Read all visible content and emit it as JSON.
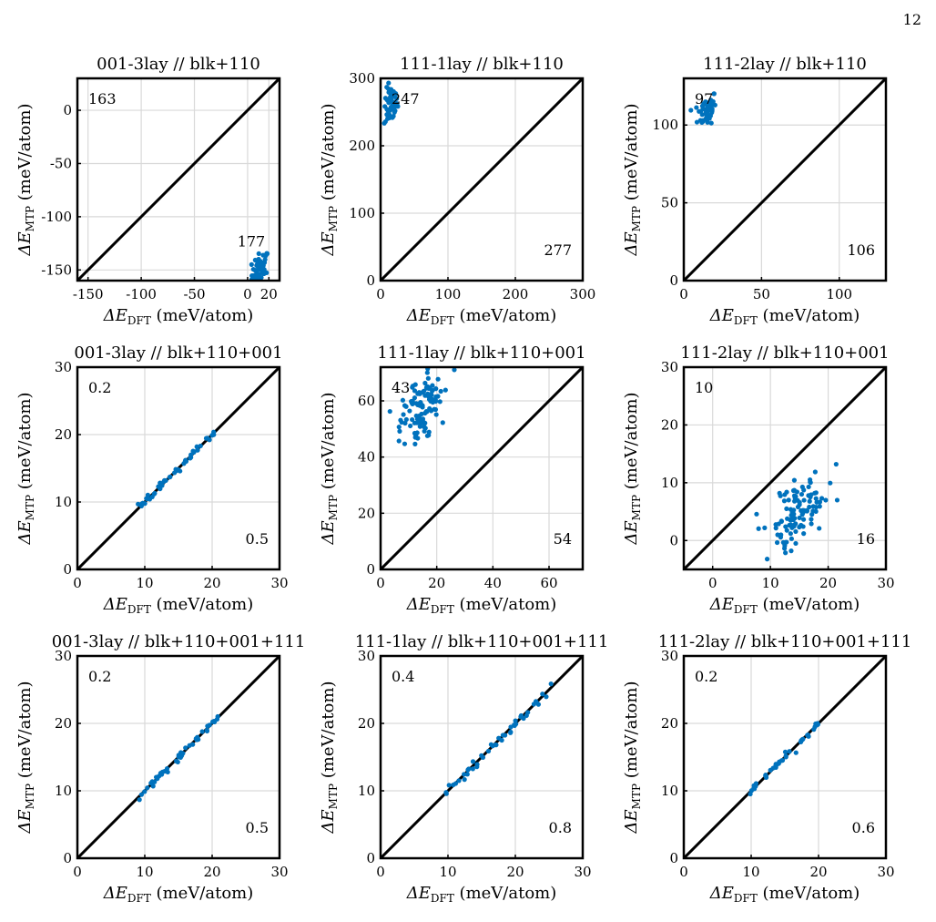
{
  "page": {
    "number": "12"
  },
  "axis_labels": {
    "x_symbol": "ΔE",
    "x_sub": "DFT",
    "x_unit": " (meV/atom)",
    "y_symbol": "ΔE",
    "y_sub": "MTP",
    "y_unit": " (meV/atom)"
  },
  "colors": {
    "marker": "#0072BD",
    "identity_line": "#000000",
    "grid": "#d9d9d9"
  },
  "chart_data": [
    {
      "type": "scatter",
      "title": "001-3lay // blk+110",
      "xlim": [
        -160,
        30
      ],
      "ylim": [
        -160,
        30
      ],
      "xticks": [
        -150,
        -100,
        -50,
        0,
        20
      ],
      "xtick_labels": [
        "-150",
        "-100",
        "-50",
        "0",
        "20"
      ],
      "yticks": [
        0,
        -50,
        -100,
        -150
      ],
      "ytick_labels": [
        "0",
        "-50",
        "-100",
        "-150"
      ],
      "grid": true,
      "identity_line": true,
      "annotations": [
        {
          "text": "163",
          "position": "top-left"
        },
        {
          "text": "177",
          "position": "near-cluster"
        }
      ],
      "cluster": {
        "x_center": 12,
        "y_center": -150,
        "x_spread": 4,
        "y_spread": 8,
        "count": 60
      }
    },
    {
      "type": "scatter",
      "title": "111-1lay // blk+110",
      "xlim": [
        0,
        300
      ],
      "ylim": [
        0,
        300
      ],
      "xticks": [
        0,
        100,
        200,
        300
      ],
      "xtick_labels": [
        "0",
        "100",
        "200",
        "300"
      ],
      "yticks": [
        0,
        100,
        200,
        300
      ],
      "ytick_labels": [
        "0",
        "100",
        "200",
        "300"
      ],
      "grid": true,
      "identity_line": true,
      "annotations": [
        {
          "text": "247",
          "position": "top-left"
        },
        {
          "text": "277",
          "position": "bottom-right"
        }
      ],
      "cluster": {
        "x_center": 15,
        "y_center": 260,
        "x_spread": 5,
        "y_spread": 14,
        "count": 60
      }
    },
    {
      "type": "scatter",
      "title": "111-2lay // blk+110",
      "xlim": [
        0,
        130
      ],
      "ylim": [
        0,
        130
      ],
      "xticks": [
        0,
        50,
        100
      ],
      "xtick_labels": [
        "0",
        "50",
        "100"
      ],
      "yticks": [
        0,
        50,
        100
      ],
      "ytick_labels": [
        "0",
        "50",
        "100"
      ],
      "grid": true,
      "identity_line": true,
      "annotations": [
        {
          "text": "97",
          "position": "top-left"
        },
        {
          "text": "106",
          "position": "bottom-right"
        }
      ],
      "cluster": {
        "x_center": 15,
        "y_center": 110,
        "x_spread": 3,
        "y_spread": 5,
        "count": 60
      }
    },
    {
      "type": "scatter",
      "title": "001-3lay // blk+110+001",
      "xlim": [
        0,
        30
      ],
      "ylim": [
        0,
        30
      ],
      "xticks": [
        0,
        10,
        20,
        30
      ],
      "xtick_labels": [
        "0",
        "10",
        "20",
        "30"
      ],
      "yticks": [
        0,
        10,
        20,
        30
      ],
      "ytick_labels": [
        "0",
        "10",
        "20",
        "30"
      ],
      "grid": true,
      "identity_line": true,
      "annotations": [
        {
          "text": "0.2",
          "position": "top-left"
        },
        {
          "text": "0.5",
          "position": "bottom-right"
        }
      ],
      "line_points": {
        "x_min": 9,
        "x_max": 21,
        "count": 45,
        "y_jitter": 0.25
      }
    },
    {
      "type": "scatter",
      "title": "111-1lay // blk+110+001",
      "xlim": [
        0,
        72
      ],
      "ylim": [
        0,
        72
      ],
      "xticks": [
        0,
        20,
        40,
        60
      ],
      "xtick_labels": [
        "0",
        "20",
        "40",
        "60"
      ],
      "yticks": [
        0,
        20,
        40,
        60
      ],
      "ytick_labels": [
        "0",
        "20",
        "40",
        "60"
      ],
      "grid": true,
      "identity_line": true,
      "annotations": [
        {
          "text": "43",
          "position": "top-left"
        },
        {
          "text": "54",
          "position": "bottom-right"
        }
      ],
      "cluster": {
        "x_center": 15,
        "y_center": 57,
        "x_spread": 3.5,
        "y_spread": 5,
        "count": 110
      }
    },
    {
      "type": "scatter",
      "title": "111-2lay // blk+110+001",
      "xlim": [
        -5,
        30
      ],
      "ylim": [
        -5,
        30
      ],
      "xticks": [
        0,
        10,
        20,
        30
      ],
      "xtick_labels": [
        "0",
        "10",
        "20",
        "30"
      ],
      "yticks": [
        0,
        10,
        20,
        30
      ],
      "ytick_labels": [
        "0",
        "10",
        "20",
        "30"
      ],
      "grid": true,
      "identity_line": true,
      "annotations": [
        {
          "text": "10",
          "position": "top-left"
        },
        {
          "text": "16",
          "position": "bottom-right"
        }
      ],
      "cluster": {
        "x_center": 14.5,
        "y_center": 4.5,
        "x_spread": 2.3,
        "y_spread": 3,
        "count": 110
      }
    },
    {
      "type": "scatter",
      "title": "001-3lay // blk+110+001+111",
      "xlim": [
        0,
        30
      ],
      "ylim": [
        0,
        30
      ],
      "xticks": [
        0,
        10,
        20,
        30
      ],
      "xtick_labels": [
        "0",
        "10",
        "20",
        "30"
      ],
      "yticks": [
        0,
        10,
        20,
        30
      ],
      "ytick_labels": [
        "0",
        "10",
        "20",
        "30"
      ],
      "grid": true,
      "identity_line": true,
      "annotations": [
        {
          "text": "0.2",
          "position": "top-left"
        },
        {
          "text": "0.5",
          "position": "bottom-right"
        }
      ],
      "line_points": {
        "x_min": 9,
        "x_max": 21,
        "count": 45,
        "y_jitter": 0.25
      }
    },
    {
      "type": "scatter",
      "title": "111-1lay // blk+110+001+111",
      "xlim": [
        0,
        30
      ],
      "ylim": [
        0,
        30
      ],
      "xticks": [
        0,
        10,
        20,
        30
      ],
      "xtick_labels": [
        "0",
        "10",
        "20",
        "30"
      ],
      "yticks": [
        0,
        10,
        20,
        30
      ],
      "ytick_labels": [
        "0",
        "10",
        "20",
        "30"
      ],
      "grid": true,
      "identity_line": true,
      "annotations": [
        {
          "text": "0.4",
          "position": "top-left"
        },
        {
          "text": "0.8",
          "position": "bottom-right"
        }
      ],
      "line_points": {
        "x_min": 9.5,
        "x_max": 25.5,
        "count": 45,
        "y_jitter": 0.35
      }
    },
    {
      "type": "scatter",
      "title": "111-2lay // blk+110+001+111",
      "xlim": [
        0,
        30
      ],
      "ylim": [
        0,
        30
      ],
      "xticks": [
        0,
        10,
        20,
        30
      ],
      "xtick_labels": [
        "0",
        "10",
        "20",
        "30"
      ],
      "yticks": [
        0,
        10,
        20,
        30
      ],
      "ytick_labels": [
        "0",
        "10",
        "20",
        "30"
      ],
      "grid": true,
      "identity_line": true,
      "annotations": [
        {
          "text": "0.2",
          "position": "top-left"
        },
        {
          "text": "0.6",
          "position": "bottom-right"
        }
      ],
      "line_points": {
        "x_min": 9.5,
        "x_max": 20,
        "count": 40,
        "y_jitter": 0.25
      }
    }
  ]
}
